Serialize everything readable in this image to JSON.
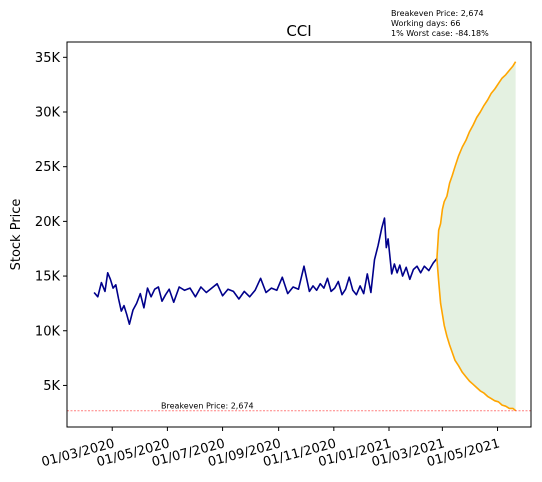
{
  "chart_data": {
    "type": "line",
    "title": "CCI",
    "xlabel": "",
    "ylabel": "Stock Price",
    "grid": false,
    "xlim": [
      "2020-01-11",
      "2021-06-07"
    ],
    "ylim": [
      1200,
      36400
    ],
    "x_ticks": [
      {
        "date": "2020-03-01",
        "label": "01/03/2020"
      },
      {
        "date": "2020-05-01",
        "label": "01/05/2020"
      },
      {
        "date": "2020-07-01",
        "label": "01/07/2020"
      },
      {
        "date": "2020-09-01",
        "label": "01/09/2020"
      },
      {
        "date": "2020-11-01",
        "label": "01/11/2020"
      },
      {
        "date": "2021-01-01",
        "label": "01/01/2021"
      },
      {
        "date": "2021-03-01",
        "label": "01/03/2021"
      },
      {
        "date": "2021-05-01",
        "label": "01/05/2021"
      }
    ],
    "y_ticks": [
      {
        "value": 5000,
        "label": "5K"
      },
      {
        "value": 10000,
        "label": "10K"
      },
      {
        "value": 15000,
        "label": "15K"
      },
      {
        "value": 20000,
        "label": "20K"
      },
      {
        "value": 25000,
        "label": "25K"
      },
      {
        "value": 30000,
        "label": "30K"
      },
      {
        "value": 35000,
        "label": "35K"
      }
    ],
    "series": [
      {
        "key": "history",
        "color": "#00008b",
        "x": [
          "2020-02-10",
          "2020-02-14",
          "2020-02-18",
          "2020-02-22",
          "2020-02-25",
          "2020-02-28",
          "2020-03-02",
          "2020-03-05",
          "2020-03-08",
          "2020-03-11",
          "2020-03-14",
          "2020-03-17",
          "2020-03-20",
          "2020-03-24",
          "2020-03-28",
          "2020-04-01",
          "2020-04-05",
          "2020-04-09",
          "2020-04-13",
          "2020-04-17",
          "2020-04-21",
          "2020-04-25",
          "2020-04-29",
          "2020-05-03",
          "2020-05-08",
          "2020-05-14",
          "2020-05-20",
          "2020-05-26",
          "2020-06-01",
          "2020-06-07",
          "2020-06-13",
          "2020-06-19",
          "2020-06-25",
          "2020-07-01",
          "2020-07-07",
          "2020-07-13",
          "2020-07-19",
          "2020-07-25",
          "2020-07-31",
          "2020-08-06",
          "2020-08-12",
          "2020-08-18",
          "2020-08-24",
          "2020-08-30",
          "2020-09-05",
          "2020-09-11",
          "2020-09-17",
          "2020-09-23",
          "2020-09-29",
          "2020-10-05",
          "2020-10-09",
          "2020-10-13",
          "2020-10-17",
          "2020-10-21",
          "2020-10-25",
          "2020-10-29",
          "2020-11-02",
          "2020-11-06",
          "2020-11-10",
          "2020-11-14",
          "2020-11-18",
          "2020-11-22",
          "2020-11-26",
          "2020-11-30",
          "2020-12-04",
          "2020-12-08",
          "2020-12-12",
          "2020-12-16",
          "2020-12-20",
          "2020-12-24",
          "2020-12-27",
          "2020-12-29",
          "2020-12-31",
          "2021-01-02",
          "2021-01-04",
          "2021-01-07",
          "2021-01-10",
          "2021-01-13",
          "2021-01-16",
          "2021-01-20",
          "2021-01-24",
          "2021-01-28",
          "2021-02-01",
          "2021-02-05",
          "2021-02-09",
          "2021-02-14",
          "2021-02-19",
          "2021-02-23"
        ],
        "y": [
          13500,
          13100,
          14400,
          13600,
          15300,
          14700,
          13900,
          14200,
          12900,
          11800,
          12300,
          11500,
          10600,
          11900,
          12500,
          13400,
          12100,
          13900,
          13100,
          13800,
          14000,
          12700,
          13300,
          13800,
          12600,
          14000,
          13700,
          13900,
          13100,
          14000,
          13500,
          13900,
          14300,
          13200,
          13800,
          13600,
          12900,
          13600,
          13100,
          13700,
          14800,
          13500,
          13900,
          13700,
          14900,
          13400,
          14000,
          13800,
          15900,
          13600,
          14100,
          13700,
          14300,
          13900,
          14800,
          13600,
          13900,
          14500,
          13300,
          13800,
          14900,
          13700,
          13300,
          14100,
          13400,
          15200,
          13500,
          16500,
          17800,
          19400,
          20300,
          17600,
          18400,
          16800,
          15200,
          16100,
          15300,
          16000,
          15000,
          15800,
          14700,
          15600,
          15900,
          15300,
          15900,
          15500,
          16200,
          16600
        ]
      },
      {
        "key": "upper",
        "color": "#ffa500",
        "x": [
          "2021-02-23",
          "2021-02-25",
          "2021-02-27",
          "2021-03-01",
          "2021-03-03",
          "2021-03-06",
          "2021-03-09",
          "2021-03-12",
          "2021-03-15",
          "2021-03-19",
          "2021-03-23",
          "2021-03-27",
          "2021-03-31",
          "2021-04-04",
          "2021-04-08",
          "2021-04-12",
          "2021-04-16",
          "2021-04-20",
          "2021-04-24",
          "2021-04-28",
          "2021-05-02",
          "2021-05-06",
          "2021-05-10",
          "2021-05-14",
          "2021-05-18",
          "2021-05-21"
        ],
        "y": [
          16600,
          19200,
          19800,
          21100,
          21800,
          22300,
          23500,
          24200,
          25000,
          26000,
          26800,
          27400,
          28200,
          28800,
          29500,
          30000,
          30600,
          31100,
          31700,
          32100,
          32600,
          33100,
          33400,
          33800,
          34200,
          34600
        ]
      },
      {
        "key": "lower",
        "color": "#ffa500",
        "x": [
          "2021-02-23",
          "2021-02-25",
          "2021-02-27",
          "2021-03-01",
          "2021-03-03",
          "2021-03-06",
          "2021-03-09",
          "2021-03-12",
          "2021-03-15",
          "2021-03-19",
          "2021-03-23",
          "2021-03-27",
          "2021-03-31",
          "2021-04-04",
          "2021-04-08",
          "2021-04-12",
          "2021-04-16",
          "2021-04-20",
          "2021-04-24",
          "2021-04-28",
          "2021-05-02",
          "2021-05-06",
          "2021-05-10",
          "2021-05-14",
          "2021-05-18",
          "2021-05-21"
        ],
        "y": [
          16600,
          14500,
          12500,
          11500,
          10500,
          9500,
          8700,
          8000,
          7300,
          6800,
          6200,
          5800,
          5400,
          5100,
          4800,
          4500,
          4300,
          4000,
          3800,
          3600,
          3500,
          3200,
          3100,
          2900,
          2900,
          2700
        ]
      }
    ],
    "confidence_band": {
      "color": "#e4f1e1"
    },
    "breakeven_line": {
      "value": 2674,
      "color": "#ff0000",
      "label": "Breakeven Price: 2,674"
    },
    "info_box": [
      "Breakeven Price: 2,674",
      "Working days: 66",
      "1% Worst case: -84.18%"
    ]
  }
}
